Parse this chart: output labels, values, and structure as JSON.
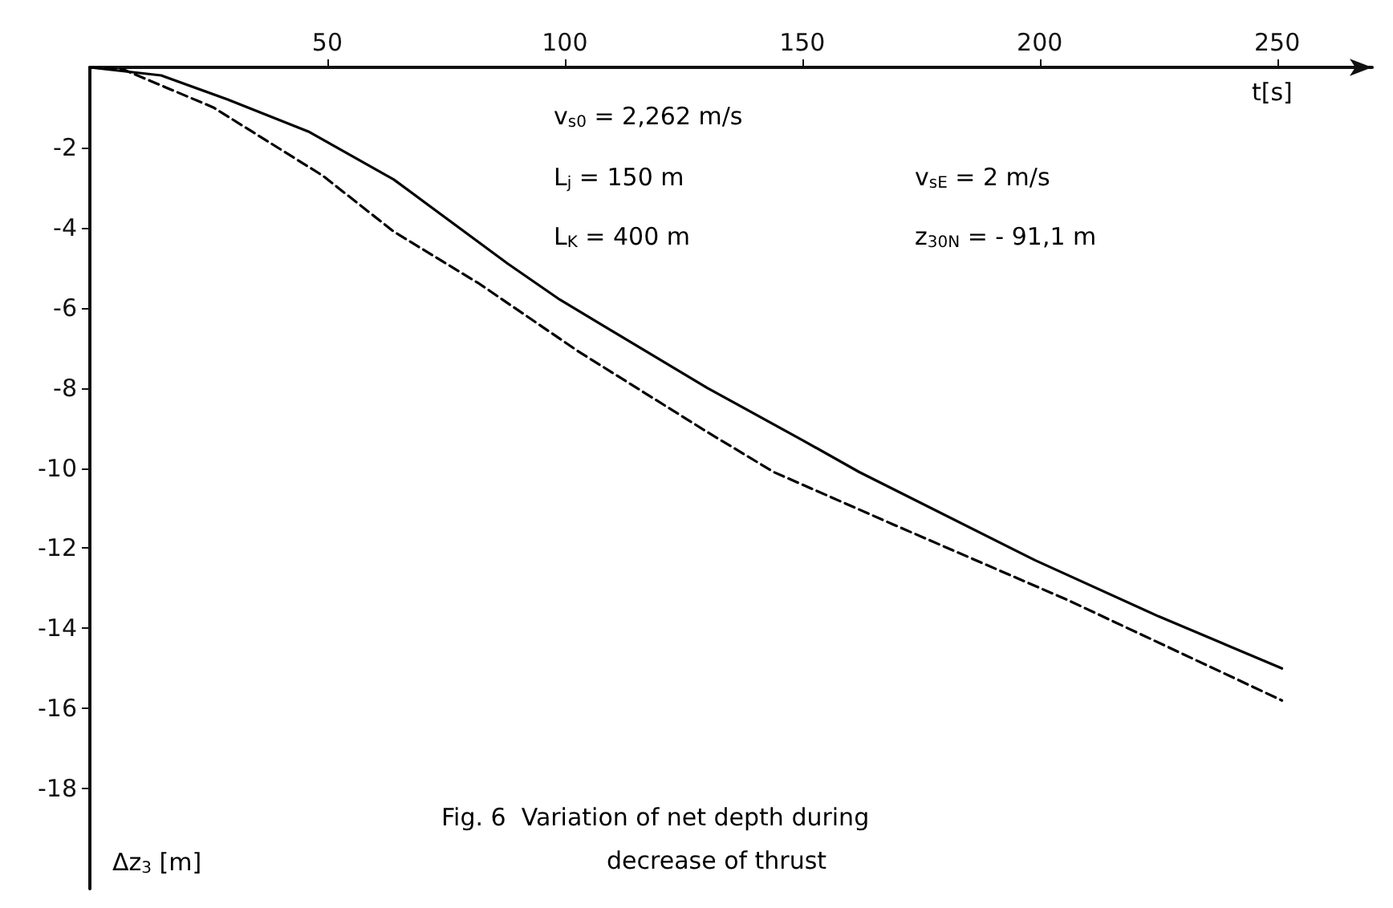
{
  "chart_data": {
    "type": "line",
    "title": "Fig. 6  Variation of net depth during\ndecrease of thrust",
    "xlabel": "t[s]",
    "ylabel": "Δz$_{3}$ [m]",
    "annotations": [
      "v$_{s0}$ = 2,262 m/s",
      "L$_{j}$ = 150 m",
      "L$_{K}$ = 400 m",
      "v$_{sE}$ = 2 m/s",
      "z$_{30N}$ = - 91,1 m"
    ],
    "xlim": [
      0,
      270
    ],
    "xticks": [
      50,
      100,
      150,
      200,
      250
    ],
    "ylim": [
      -20.5,
      0
    ],
    "yticks": [
      -18,
      -16,
      -14,
      -12,
      -10,
      -8,
      -6,
      -4,
      -2
    ],
    "grid": false,
    "marker": "none",
    "series": [
      {
        "color": "#000000",
        "line_style": "solid",
        "x": [
          0,
          15,
          29,
          46,
          64,
          88,
          99,
          130,
          150,
          162,
          199,
          225,
          251
        ],
        "values": [
          0,
          -0.2,
          -0.8,
          -1.6,
          -2.8,
          -4.9,
          -5.8,
          -8.0,
          -9.3,
          -10.1,
          -12.3,
          -13.7,
          -15.0
        ]
      },
      {
        "color": "#000000",
        "line_style": "dashed",
        "x": [
          0,
          7,
          26,
          49,
          64,
          82,
          103,
          130,
          144,
          169,
          206,
          251
        ],
        "values": [
          0,
          -0.05,
          -1.0,
          -2.7,
          -4.1,
          -5.4,
          -7.1,
          -9.1,
          -10.1,
          -11.4,
          -13.3,
          -15.8
        ]
      }
    ]
  }
}
